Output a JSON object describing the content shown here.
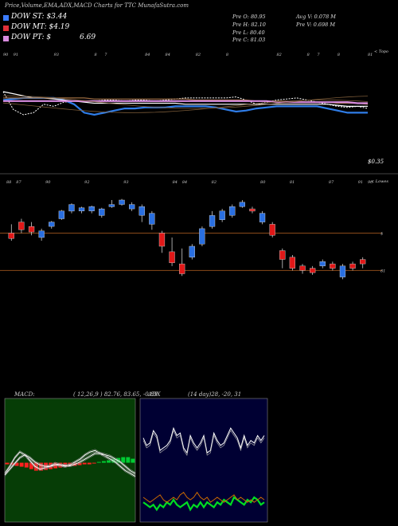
{
  "header": {
    "title": "Price,Volume,EMA,ADX,MACD Charts for TTC MunafaSutra.com"
  },
  "legend": [
    {
      "label": "DOW ST: $3.44",
      "color": "#3c7cff"
    },
    {
      "label": "DOW MT: $4.19",
      "color": "#e0303a"
    },
    {
      "label": "DOW PT: $",
      "color": "#d98ce0",
      "extra": "6.69"
    }
  ],
  "ohlc": {
    "open": "Pre O: 80.95",
    "high": "Pre H: 82.10",
    "low": "Pre L: 80.40",
    "close": "Pre C: 81.03",
    "avg_vol": "Avg V: 0.078 M",
    "pre_vol": "Pre V: 0.698 M"
  },
  "top_axis_note": "< Topo",
  "lower_axis_note": "< Lowes",
  "ema_price_label": "$0.35",
  "colors": {
    "up": "#2a6fe0",
    "down": "#e01818",
    "wick": "#ccc",
    "hline": "#8a4a1a",
    "macd_green": "#00cc33",
    "macd_red": "#ff2020"
  },
  "chart_data": [
    {
      "type": "line",
      "name": "ema-panel",
      "note": "EMA lines panel",
      "top_labels": [
        "90",
        "91",
        "",
        "",
        "",
        "93",
        "",
        "",
        "",
        "8",
        "7",
        "",
        "",
        "",
        "84",
        "",
        "84",
        "",
        "",
        "82",
        "",
        "",
        "8",
        "",
        "",
        "",
        "",
        "82",
        "",
        "",
        "8",
        "7",
        "",
        "8",
        "",
        "",
        "81"
      ],
      "series": [
        {
          "name": "price",
          "values": [
            0.72,
            0.55,
            0.5,
            0.52,
            0.6,
            0.58,
            0.62,
            0.63,
            0.63,
            0.63,
            0.64,
            0.64,
            0.63,
            0.64,
            0.64,
            0.63,
            0.64,
            0.65,
            0.66,
            0.66,
            0.66,
            0.66,
            0.66,
            0.67,
            0.64,
            0.6,
            0.62,
            0.64,
            0.65,
            0.66,
            0.64,
            0.62,
            0.6,
            0.58,
            0.57,
            0.58,
            0.56
          ]
        },
        {
          "name": "ema-short",
          "values": [
            0.64,
            0.65,
            0.66,
            0.66,
            0.66,
            0.66,
            0.64,
            0.6,
            0.52,
            0.5,
            0.52,
            0.54,
            0.56,
            0.56,
            0.57,
            0.57,
            0.57,
            0.58,
            0.58,
            0.58,
            0.58,
            0.57,
            0.55,
            0.53,
            0.54,
            0.56,
            0.57,
            0.58,
            0.58,
            0.58,
            0.58,
            0.58,
            0.56,
            0.54,
            0.52,
            0.52,
            0.52
          ]
        },
        {
          "name": "ema-mid",
          "values": [
            0.72,
            0.7,
            0.68,
            0.66,
            0.66,
            0.65,
            0.64,
            0.63,
            0.62,
            0.61,
            0.61,
            0.61,
            0.61,
            0.61,
            0.61,
            0.61,
            0.61,
            0.61,
            0.6,
            0.6,
            0.6,
            0.6,
            0.6,
            0.6,
            0.6,
            0.6,
            0.6,
            0.6,
            0.6,
            0.6,
            0.6,
            0.6,
            0.6,
            0.59,
            0.58,
            0.58,
            0.58
          ]
        },
        {
          "name": "ema-long",
          "values": [
            0.66,
            0.66,
            0.66,
            0.66,
            0.66,
            0.66,
            0.66,
            0.66,
            0.66,
            0.65,
            0.65,
            0.65,
            0.65,
            0.65,
            0.65,
            0.65,
            0.65,
            0.65,
            0.65,
            0.64,
            0.64,
            0.64,
            0.64,
            0.64,
            0.64,
            0.63,
            0.63,
            0.63,
            0.63,
            0.62,
            0.62,
            0.62,
            0.62,
            0.61,
            0.61,
            0.61,
            0.6
          ]
        },
        {
          "name": "ema-pt",
          "values": [
            0.63,
            0.63,
            0.63,
            0.63,
            0.63,
            0.63,
            0.63,
            0.63,
            0.63,
            0.63,
            0.63,
            0.63,
            0.63,
            0.63,
            0.63,
            0.63,
            0.63,
            0.63,
            0.63,
            0.63,
            0.63,
            0.63,
            0.63,
            0.63,
            0.63,
            0.63,
            0.63,
            0.62,
            0.62,
            0.62,
            0.62,
            0.62,
            0.62,
            0.62,
            0.62,
            0.61,
            0.61
          ]
        }
      ]
    },
    {
      "type": "candlestick",
      "name": "price-panel",
      "top_labels": [
        "88",
        "87",
        "",
        "",
        "90",
        "",
        "",
        "",
        "92",
        "",
        "",
        "",
        "93",
        "",
        "",
        "",
        "",
        "84",
        "84",
        "",
        "",
        "82",
        "",
        "",
        "",
        "",
        "80",
        "",
        "",
        "81",
        "",
        "",
        "",
        "87",
        "",
        "",
        "91",
        "90"
      ],
      "hlines": [
        0.28,
        0.62
      ],
      "right_labels": [
        "$",
        "81"
      ],
      "candles": [
        [
          0.62,
          0.57,
          0.7,
          0.55
        ],
        [
          0.72,
          0.65,
          0.75,
          0.62
        ],
        [
          0.68,
          0.63,
          0.72,
          0.6
        ],
        [
          0.58,
          0.64,
          0.66,
          0.55
        ],
        [
          0.68,
          0.72,
          0.73,
          0.66
        ],
        [
          0.75,
          0.82,
          0.83,
          0.74
        ],
        [
          0.82,
          0.88,
          0.89,
          0.8
        ],
        [
          0.82,
          0.85,
          0.86,
          0.8
        ],
        [
          0.82,
          0.86,
          0.87,
          0.8
        ],
        [
          0.78,
          0.84,
          0.85,
          0.76
        ],
        [
          0.86,
          0.88,
          0.92,
          0.85
        ],
        [
          0.88,
          0.92,
          0.93,
          0.87
        ],
        [
          0.84,
          0.88,
          0.9,
          0.82
        ],
        [
          0.78,
          0.86,
          0.88,
          0.72
        ],
        [
          0.7,
          0.8,
          0.82,
          0.65
        ],
        [
          0.62,
          0.5,
          0.64,
          0.44
        ],
        [
          0.45,
          0.35,
          0.58,
          0.32
        ],
        [
          0.34,
          0.25,
          0.48,
          0.23
        ],
        [
          0.4,
          0.5,
          0.52,
          0.38
        ],
        [
          0.52,
          0.66,
          0.68,
          0.5
        ],
        [
          0.68,
          0.78,
          0.82,
          0.66
        ],
        [
          0.74,
          0.82,
          0.84,
          0.72
        ],
        [
          0.78,
          0.86,
          0.88,
          0.76
        ],
        [
          0.86,
          0.9,
          0.92,
          0.85
        ],
        [
          0.84,
          0.82,
          0.86,
          0.8
        ],
        [
          0.72,
          0.8,
          0.82,
          0.7
        ],
        [
          0.7,
          0.6,
          0.72,
          0.58
        ],
        [
          0.46,
          0.38,
          0.48,
          0.3
        ],
        [
          0.4,
          0.3,
          0.42,
          0.28
        ],
        [
          0.32,
          0.28,
          0.34,
          0.25
        ],
        [
          0.3,
          0.26,
          0.32,
          0.24
        ],
        [
          0.32,
          0.36,
          0.38,
          0.3
        ],
        [
          0.34,
          0.3,
          0.36,
          0.28
        ],
        [
          0.22,
          0.32,
          0.34,
          0.2
        ],
        [
          0.34,
          0.3,
          0.36,
          0.28
        ],
        [
          0.38,
          0.34,
          0.4,
          0.3
        ]
      ]
    },
    {
      "type": "line",
      "name": "macd",
      "title": "MACD:",
      "params": "( 12,26,9 ) 82.76, 83.65, -0.89",
      "series": [
        {
          "name": "macd-line",
          "color": "#ffffff",
          "values": [
            0.3,
            0.4,
            0.52,
            0.6,
            0.56,
            0.48,
            0.4,
            0.36,
            0.38,
            0.4,
            0.44,
            0.42,
            0.4,
            0.42,
            0.46,
            0.5,
            0.56,
            0.6,
            0.62,
            0.58,
            0.54,
            0.5,
            0.46,
            0.4,
            0.34,
            0.3,
            0.26
          ]
        },
        {
          "name": "signal-line",
          "color": "#ffffff",
          "values": [
            0.28,
            0.36,
            0.44,
            0.52,
            0.56,
            0.52,
            0.46,
            0.42,
            0.4,
            0.4,
            0.42,
            0.42,
            0.41,
            0.41,
            0.43,
            0.46,
            0.5,
            0.54,
            0.58,
            0.58,
            0.56,
            0.54,
            0.5,
            0.46,
            0.4,
            0.34,
            0.3
          ]
        },
        {
          "name": "histogram",
          "values": [
            -0.2,
            -0.3,
            -0.4,
            -0.5,
            -0.6,
            -0.8,
            -1.0,
            -1.0,
            -0.9,
            -0.8,
            -0.7,
            -0.6,
            -0.5,
            -0.4,
            -0.4,
            -0.3,
            -0.2,
            -0.2,
            -0.1,
            0.1,
            0.2,
            0.3,
            0.5,
            0.6,
            0.7,
            0.7,
            0.5
          ]
        }
      ]
    },
    {
      "type": "line",
      "name": "adx",
      "title": "ADX",
      "params": "(14 day)28, -20, 31",
      "series": [
        {
          "name": "adx-line",
          "color": "#ffffff",
          "values": [
            0.32,
            0.38,
            0.36,
            0.26,
            0.3,
            0.42,
            0.4,
            0.38,
            0.34,
            0.24,
            0.3,
            0.28,
            0.4,
            0.44,
            0.3,
            0.36,
            0.4,
            0.36,
            0.3,
            0.44,
            0.42,
            0.28,
            0.34,
            0.38,
            0.36,
            0.3,
            0.24,
            0.28,
            0.32,
            0.4,
            0.3,
            0.38,
            0.34,
            0.36,
            0.3,
            0.34,
            0.3
          ]
        },
        {
          "name": "plus-di",
          "color": "#00dd22",
          "values": [
            0.84,
            0.86,
            0.88,
            0.86,
            0.9,
            0.86,
            0.88,
            0.84,
            0.86,
            0.82,
            0.86,
            0.88,
            0.86,
            0.84,
            0.9,
            0.86,
            0.88,
            0.84,
            0.88,
            0.84,
            0.86,
            0.88,
            0.84,
            0.86,
            0.82,
            0.84,
            0.86,
            0.8,
            0.82,
            0.84,
            0.86,
            0.82,
            0.84,
            0.8,
            0.82,
            0.86,
            0.84
          ]
        },
        {
          "name": "minus-di",
          "color": "#cc6a00",
          "values": [
            0.8,
            0.82,
            0.84,
            0.82,
            0.8,
            0.78,
            0.82,
            0.84,
            0.82,
            0.8,
            0.82,
            0.78,
            0.76,
            0.8,
            0.82,
            0.8,
            0.76,
            0.8,
            0.82,
            0.8,
            0.84,
            0.82,
            0.8,
            0.82,
            0.84,
            0.82,
            0.8,
            0.78,
            0.82,
            0.8,
            0.82,
            0.84,
            0.82,
            0.84,
            0.82,
            0.8,
            0.82
          ]
        }
      ]
    }
  ]
}
